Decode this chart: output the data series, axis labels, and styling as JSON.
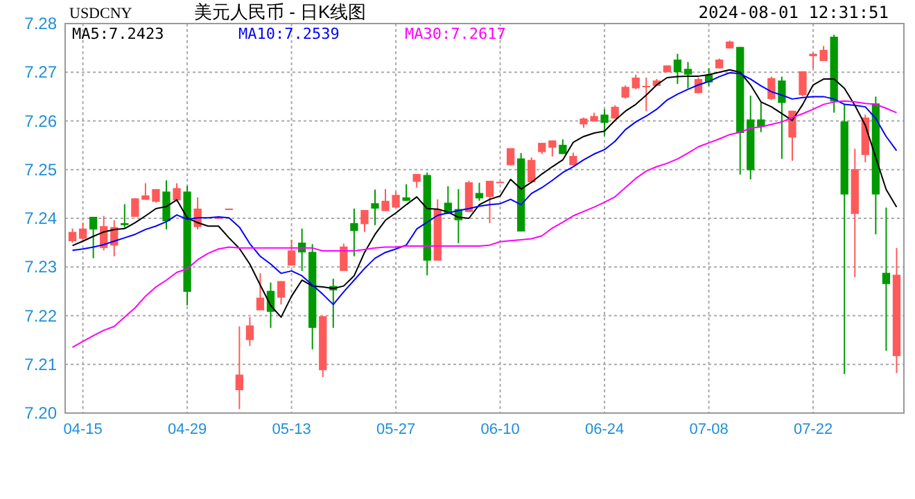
{
  "chart_data": {
    "type": "candlestick",
    "title": "美元人民币 - 日K线图",
    "subtitle": "USDCNY",
    "annotations": [
      "2024-08-01 12:31:51"
    ],
    "categories": [
      null,
      "04-15",
      null,
      null,
      null,
      null,
      null,
      null,
      null,
      null,
      null,
      "04-29",
      null,
      null,
      null,
      null,
      null,
      null,
      null,
      null,
      null,
      "05-13",
      null,
      null,
      null,
      null,
      null,
      null,
      null,
      null,
      null,
      "05-27",
      null,
      null,
      null,
      null,
      null,
      null,
      null,
      null,
      null,
      "06-10",
      null,
      null,
      null,
      null,
      null,
      null,
      null,
      null,
      null,
      "06-24",
      null,
      null,
      null,
      null,
      null,
      null,
      null,
      null,
      null,
      "07-08",
      null,
      null,
      null,
      null,
      null,
      null,
      null,
      null,
      null,
      "07-22",
      null,
      null,
      null,
      null,
      null,
      null,
      null,
      null
    ],
    "ohlc": [
      [
        7.2353,
        7.2379,
        7.235,
        7.2372
      ],
      [
        7.2358,
        7.2391,
        7.2353,
        7.2379
      ],
      [
        7.2403,
        7.2403,
        7.2318,
        7.2377
      ],
      [
        7.2339,
        7.2405,
        7.2334,
        7.2384
      ],
      [
        7.2344,
        7.2396,
        7.2322,
        7.2382
      ],
      [
        7.239,
        7.2429,
        7.2381,
        7.2386
      ],
      [
        7.2403,
        7.2441,
        7.2403,
        7.2441
      ],
      [
        7.2438,
        7.2472,
        7.2438,
        7.2447
      ],
      [
        7.2434,
        7.246,
        7.2432,
        7.246
      ],
      [
        7.2455,
        7.2478,
        7.2377,
        7.2394
      ],
      [
        7.2437,
        7.2472,
        7.2434,
        7.2462
      ],
      [
        7.2455,
        7.2467,
        7.2221,
        7.2249
      ],
      [
        7.2382,
        7.2443,
        7.2377,
        7.242
      ],
      null,
      [
        7.2399,
        7.2402,
        7.2399,
        7.2402
      ],
      [
        7.2419,
        7.242,
        7.2419,
        7.242
      ],
      [
        7.2047,
        7.2178,
        7.2008,
        7.2079
      ],
      [
        7.215,
        7.2197,
        7.2138,
        7.218
      ],
      [
        7.2211,
        7.2287,
        7.2211,
        7.2237
      ],
      [
        7.2251,
        7.2268,
        7.2175,
        7.2208
      ],
      [
        7.2237,
        7.2271,
        7.2223,
        7.2271
      ],
      [
        7.2303,
        7.2356,
        7.2303,
        7.2334
      ],
      [
        7.235,
        7.2379,
        7.2292,
        7.233
      ],
      [
        7.2331,
        7.2347,
        7.2131,
        7.2175
      ],
      [
        7.2088,
        7.2199,
        7.2074,
        7.2199
      ],
      [
        7.2261,
        7.2276,
        7.2175,
        7.2252
      ],
      [
        7.2292,
        7.2348,
        7.2292,
        7.2342
      ],
      [
        7.239,
        7.242,
        7.2322,
        7.2374
      ],
      [
        7.2388,
        7.2417,
        7.2372,
        7.2417
      ],
      [
        7.2431,
        7.2459,
        7.2386,
        7.242
      ],
      [
        7.2415,
        7.246,
        7.2415,
        7.2436
      ],
      [
        7.2422,
        7.2455,
        7.2422,
        7.2448
      ],
      [
        7.2443,
        7.247,
        7.2436,
        7.2436
      ],
      [
        7.2475,
        7.2491,
        7.2463,
        7.2491
      ],
      [
        7.2489,
        7.2494,
        7.2283,
        7.2313
      ],
      [
        7.2313,
        7.2439,
        7.2313,
        7.2419
      ],
      [
        7.2432,
        7.2466,
        7.2409,
        7.2409
      ],
      [
        7.2419,
        7.246,
        7.2349,
        7.2396
      ],
      [
        7.2413,
        7.2477,
        7.2413,
        7.2474
      ],
      [
        7.2452,
        7.2473,
        7.2436,
        7.2441
      ],
      [
        7.2444,
        7.2477,
        7.239,
        7.2477
      ],
      [
        7.2474,
        7.2475,
        7.2474,
        7.2475
      ],
      [
        7.2509,
        7.2544,
        7.2509,
        7.2544
      ],
      [
        7.2523,
        7.2534,
        7.2373,
        7.2373
      ],
      [
        7.2474,
        7.2525,
        7.2472,
        7.252
      ],
      [
        7.2536,
        7.2555,
        7.2532,
        7.2555
      ],
      [
        7.2545,
        7.256,
        7.2527,
        7.256
      ],
      [
        7.2551,
        7.2562,
        7.2532,
        7.2532
      ],
      [
        7.2509,
        7.2535,
        7.2509,
        7.2528
      ],
      [
        7.2593,
        7.2607,
        7.2586,
        7.2605
      ],
      [
        7.2599,
        7.2617,
        7.2599,
        7.261
      ],
      [
        7.2613,
        7.2624,
        7.2569,
        7.2596
      ],
      [
        7.2605,
        7.2632,
        7.2605,
        7.2629
      ],
      [
        7.2648,
        7.2673,
        7.2646,
        7.267
      ],
      [
        7.2667,
        7.2695,
        7.2665,
        7.2689
      ],
      [
        7.2671,
        7.2689,
        7.262,
        7.2672
      ],
      [
        7.2672,
        7.2686,
        7.2672,
        7.2683
      ],
      [
        7.27,
        7.2714,
        7.27,
        7.2714
      ],
      [
        7.2726,
        7.2738,
        7.2676,
        7.27
      ],
      [
        7.2707,
        7.2721,
        7.2667,
        7.2695
      ],
      [
        7.2657,
        7.2689,
        7.2657,
        7.2686
      ],
      [
        7.2695,
        7.2708,
        7.2672,
        7.2679
      ],
      [
        7.2708,
        7.2728,
        7.2708,
        7.2726
      ],
      [
        7.2749,
        7.2765,
        7.2749,
        7.2763
      ],
      [
        7.2752,
        7.2752,
        7.249,
        7.2575
      ],
      [
        7.2603,
        7.2652,
        7.248,
        7.2499
      ],
      [
        7.2603,
        7.2638,
        7.2577,
        7.2588
      ],
      [
        7.2645,
        7.2691,
        7.2643,
        7.2688
      ],
      [
        7.2683,
        7.2691,
        7.2522,
        7.2637
      ],
      [
        7.2566,
        7.2621,
        7.2518,
        7.2621
      ],
      [
        7.2653,
        7.2702,
        7.2651,
        7.2702
      ],
      [
        7.2733,
        7.274,
        7.2708,
        7.2738
      ],
      [
        7.2723,
        7.2754,
        7.2723,
        7.2746
      ],
      [
        7.2773,
        7.2777,
        7.2617,
        7.264
      ],
      [
        7.2599,
        7.2634,
        7.208,
        7.2449
      ],
      [
        7.2409,
        7.2543,
        7.2279,
        7.2501
      ],
      [
        7.253,
        7.2613,
        7.2515,
        7.2607
      ],
      [
        7.2636,
        7.265,
        7.2367,
        7.2449
      ],
      [
        7.2288,
        7.2422,
        7.2128,
        7.2265
      ],
      [
        7.2117,
        7.2339,
        7.2082,
        7.2284
      ]
    ],
    "colors": [
      "#ff5a5a",
      "#ff5a5a",
      "#009900",
      "#ff5a5a",
      "#ff5a5a",
      "#009900",
      "#ff5a5a",
      "#ff5a5a",
      "#ff5a5a",
      "#009900",
      "#ff5a5a",
      "#009900",
      "#ff5a5a",
      null,
      "#ff5a5a",
      "#ff5a5a",
      "#ff5a5a",
      "#ff5a5a",
      "#ff5a5a",
      "#009900",
      "#ff5a5a",
      "#ff5a5a",
      "#009900",
      "#009900",
      "#ff5a5a",
      "#009900",
      "#ff5a5a",
      "#009900",
      "#ff5a5a",
      "#009900",
      "#ff5a5a",
      "#ff5a5a",
      "#009900",
      "#ff5a5a",
      "#009900",
      "#ff5a5a",
      "#009900",
      "#009900",
      "#ff5a5a",
      "#009900",
      "#ff5a5a",
      "#ff5a5a",
      "#ff5a5a",
      "#009900",
      "#ff5a5a",
      "#ff5a5a",
      "#ff5a5a",
      "#009900",
      "#ff5a5a",
      "#ff5a5a",
      "#ff5a5a",
      "#009900",
      "#ff5a5a",
      "#ff5a5a",
      "#ff5a5a",
      "#ff5a5a",
      "#ff5a5a",
      "#ff5a5a",
      "#009900",
      "#009900",
      "#ff5a5a",
      "#009900",
      "#ff5a5a",
      "#ff5a5a",
      "#009900",
      "#009900",
      "#009900",
      "#ff5a5a",
      "#009900",
      "#ff5a5a",
      "#ff5a5a",
      "#ff5a5a",
      "#ff5a5a",
      "#009900",
      "#009900",
      "#ff5a5a",
      "#ff5a5a",
      "#009900",
      "#009900",
      "#ff5a5a"
    ],
    "series": [
      {
        "name": "MA5:7.2423",
        "type": "line",
        "color": "#000000",
        "values": [
          7.2344,
          7.2353,
          7.2363,
          7.2372,
          7.2377,
          7.2379,
          7.2391,
          7.2405,
          7.242,
          7.2424,
          7.2438,
          7.2401,
          7.2391,
          7.2384,
          7.2384,
          7.236,
          7.2338,
          7.2306,
          7.2263,
          7.2221,
          7.2197,
          7.224,
          7.2273,
          7.2261,
          7.2259,
          7.2256,
          7.2261,
          7.2282,
          7.233,
          7.2367,
          7.2396,
          7.2411,
          7.2428,
          7.2444,
          7.242,
          7.2419,
          7.2413,
          7.2402,
          7.24,
          7.2428,
          7.2439,
          7.2446,
          7.248,
          7.246,
          7.2474,
          7.2491,
          7.2506,
          7.252,
          7.2556,
          7.2568,
          7.2575,
          7.2579,
          7.2601,
          7.262,
          7.2634,
          7.2653,
          7.2674,
          7.2689,
          7.2691,
          7.2692,
          7.2692,
          7.2695,
          7.27,
          7.2705,
          7.27,
          7.2674,
          7.2639,
          7.2629,
          7.2615,
          7.2601,
          7.2634,
          7.2674,
          7.2686,
          7.2686,
          7.2667,
          7.2632,
          7.2591,
          7.2525,
          7.2459,
          7.2423
        ]
      },
      {
        "name": "MA10:7.2539",
        "type": "line",
        "color": "#0000ff",
        "values": [
          7.2334,
          7.2337,
          7.2341,
          7.2346,
          7.2353,
          7.236,
          7.2367,
          7.2377,
          7.2384,
          7.2393,
          7.2407,
          7.2398,
          7.2401,
          7.2401,
          7.2403,
          7.2401,
          7.2382,
          7.2348,
          7.2322,
          7.2306,
          7.2287,
          7.2292,
          7.2282,
          7.2263,
          7.2244,
          7.2223,
          7.2249,
          7.2273,
          7.2297,
          7.2318,
          7.233,
          7.2337,
          7.2345,
          7.2378,
          7.2392,
          7.2406,
          7.2411,
          7.2416,
          7.242,
          7.2425,
          7.2428,
          7.243,
          7.2439,
          7.2428,
          7.2451,
          7.2463,
          7.2478,
          7.2494,
          7.2506,
          7.252,
          7.2532,
          7.2541,
          7.2558,
          7.2582,
          7.2598,
          7.261,
          7.2624,
          7.2643,
          7.2655,
          7.2665,
          7.2674,
          7.2681,
          7.2691,
          7.2699,
          7.2697,
          7.2686,
          7.2672,
          7.266,
          7.2653,
          7.2645,
          7.2648,
          7.265,
          7.265,
          7.2645,
          7.2634,
          7.2632,
          7.2629,
          7.2605,
          7.2568,
          7.2539
        ]
      },
      {
        "name": "MA30:7.2617",
        "type": "line",
        "color": "#ff00ff",
        "values": [
          7.2135,
          7.2147,
          7.2159,
          7.217,
          7.2178,
          7.2197,
          7.2216,
          7.224,
          7.2259,
          7.2273,
          7.2289,
          7.2296,
          7.2315,
          7.2328,
          7.2337,
          7.2341,
          7.2339,
          7.2339,
          7.2339,
          7.2339,
          7.2339,
          7.2339,
          7.2339,
          7.2339,
          7.2333,
          7.2333,
          7.2333,
          7.2333,
          7.2336,
          7.2339,
          7.2341,
          7.2341,
          7.2343,
          7.2343,
          7.2343,
          7.2343,
          7.2343,
          7.2343,
          7.2343,
          7.2343,
          7.2345,
          7.2352,
          7.2354,
          7.2356,
          7.2358,
          7.2364,
          7.238,
          7.2392,
          7.2405,
          7.2414,
          7.2423,
          7.2433,
          7.2444,
          7.2463,
          7.2482,
          7.2497,
          7.2506,
          7.2513,
          7.2522,
          7.2534,
          7.2547,
          7.2555,
          7.2563,
          7.2572,
          7.2577,
          7.2585,
          7.2588,
          7.2593,
          7.2598,
          7.2607,
          7.2615,
          7.2624,
          7.2634,
          7.2639,
          7.2641,
          7.2639,
          7.2636,
          7.2634,
          7.2626,
          7.2617
        ]
      }
    ],
    "ylim": [
      7.2,
      7.28
    ],
    "yticks": [
      {
        "value": 7.2,
        "label": "7.20"
      },
      7.21,
      7.22,
      7.23,
      7.24,
      7.25,
      7.26,
      7.27,
      7.28
    ],
    "grid": true,
    "legend": "top left"
  }
}
